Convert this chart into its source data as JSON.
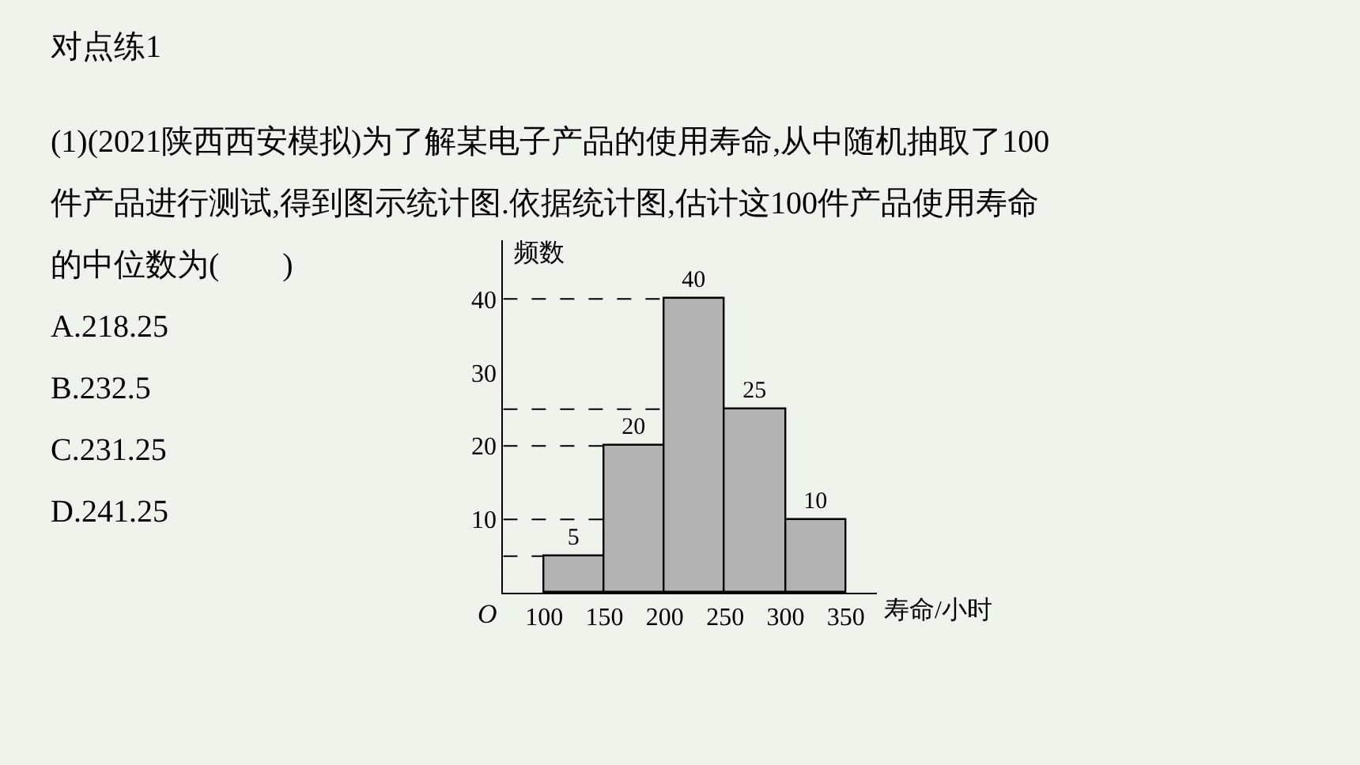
{
  "chart_data": {
    "type": "histogram",
    "title": "对点练1",
    "annotations": [
      "(1)(2021陕西西安模拟)为了解某电子产品的使用寿命,从中随机抽取了100",
      "件产品进行测试,得到图示统计图.依据统计图,估计这100件产品使用寿命",
      "的中位数为(　　)",
      "A.218.25",
      "B.232.5",
      "C.231.25",
      "D.241.25",
      "O"
    ],
    "xlabel": "寿命/小时",
    "ylabel": "频数",
    "bins": [
      100,
      150,
      200,
      250,
      300,
      350
    ],
    "values": [
      5,
      20,
      40,
      25,
      10
    ],
    "color": "#b3b3b3",
    "data_labels": true,
    "xlim": [
      66,
      376
    ],
    "xticks": [
      100,
      150,
      200,
      250,
      300,
      350
    ],
    "ylim": [
      0,
      48
    ],
    "yticks": [
      10,
      20,
      30,
      40
    ],
    "ref_lines": [
      {
        "axis": "y",
        "value": 5,
        "line_style": "dashed"
      },
      {
        "axis": "y",
        "value": 10,
        "line_style": "dashed"
      },
      {
        "axis": "y",
        "value": 20,
        "line_style": "dashed"
      },
      {
        "axis": "y",
        "value": 25,
        "line_style": "dashed"
      },
      {
        "axis": "y",
        "value": 40,
        "line_style": "dashed"
      }
    ],
    "grid": false,
    "legend": false
  }
}
